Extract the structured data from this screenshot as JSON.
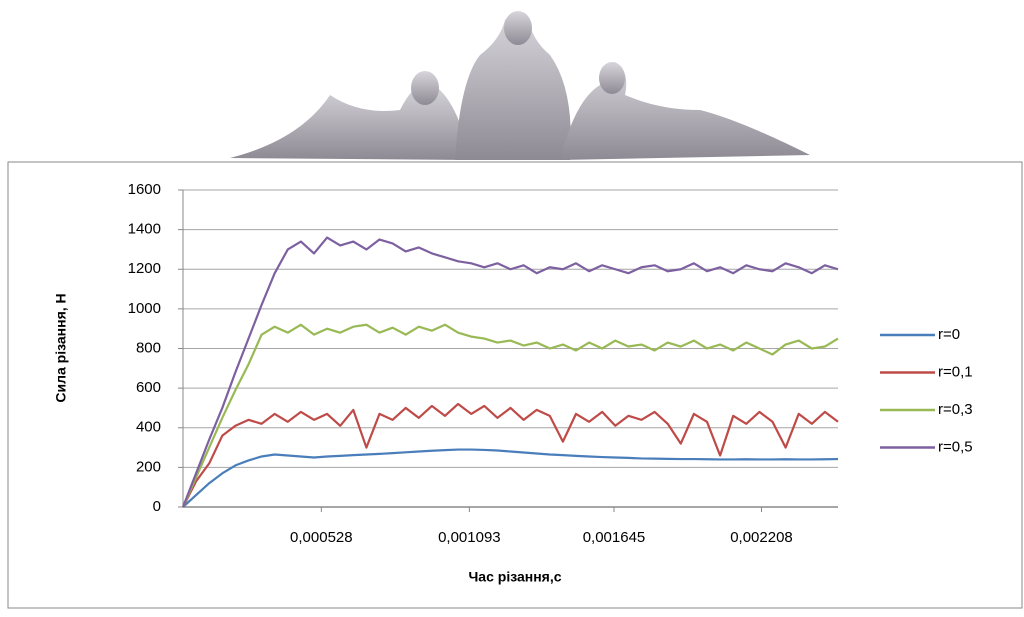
{
  "chart_data": {
    "type": "line",
    "x_label": "Час різання,с",
    "y_label": "Сила різання, Н",
    "x": [
      0,
      5e-05,
      0.0001,
      0.00015,
      0.0002,
      0.00025,
      0.0003,
      0.00035,
      0.0004,
      0.00045,
      0.0005,
      0.00055,
      0.0006,
      0.00065,
      0.0007,
      0.00075,
      0.0008,
      0.00085,
      0.0009,
      0.00095,
      0.001,
      0.00105,
      0.0011,
      0.00115,
      0.0012,
      0.00125,
      0.0013,
      0.00135,
      0.0014,
      0.00145,
      0.0015,
      0.00155,
      0.0016,
      0.00165,
      0.0017,
      0.00175,
      0.0018,
      0.00185,
      0.0019,
      0.00195,
      0.002,
      0.00205,
      0.0021,
      0.00215,
      0.0022,
      0.00225,
      0.0023,
      0.00235,
      0.0024,
      0.00245,
      0.0025
    ],
    "series": [
      {
        "name": "r=0",
        "color": "#4a7ebb",
        "values": [
          0,
          60,
          120,
          170,
          210,
          235,
          255,
          265,
          260,
          255,
          250,
          255,
          258,
          262,
          265,
          268,
          272,
          276,
          280,
          284,
          287,
          290,
          290,
          288,
          285,
          280,
          275,
          270,
          265,
          262,
          258,
          255,
          252,
          250,
          248,
          245,
          244,
          243,
          242,
          242,
          241,
          240,
          240,
          241,
          240,
          240,
          241,
          240,
          240,
          241,
          242
        ]
      },
      {
        "name": "r=0,1",
        "color": "#be4b48",
        "values": [
          0,
          130,
          220,
          360,
          410,
          440,
          420,
          470,
          430,
          480,
          440,
          470,
          410,
          490,
          300,
          470,
          440,
          500,
          450,
          510,
          460,
          520,
          470,
          510,
          450,
          500,
          440,
          490,
          460,
          330,
          470,
          430,
          480,
          410,
          460,
          440,
          480,
          420,
          320,
          470,
          430,
          260,
          460,
          420,
          480,
          430,
          300,
          470,
          420,
          480,
          430
        ]
      },
      {
        "name": "r=0,3",
        "color": "#98b954",
        "values": [
          0,
          150,
          300,
          450,
          590,
          720,
          870,
          910,
          880,
          920,
          870,
          900,
          880,
          910,
          920,
          880,
          905,
          870,
          910,
          890,
          920,
          880,
          860,
          850,
          830,
          840,
          815,
          830,
          800,
          820,
          790,
          830,
          800,
          840,
          810,
          820,
          790,
          830,
          810,
          840,
          800,
          820,
          790,
          830,
          800,
          770,
          820,
          840,
          800,
          810,
          850
        ]
      },
      {
        "name": "r=0,5",
        "color": "#7d60a0",
        "values": [
          0,
          170,
          340,
          500,
          680,
          850,
          1020,
          1180,
          1300,
          1340,
          1280,
          1360,
          1320,
          1340,
          1300,
          1350,
          1330,
          1290,
          1310,
          1280,
          1260,
          1240,
          1230,
          1210,
          1230,
          1200,
          1220,
          1180,
          1210,
          1200,
          1230,
          1190,
          1220,
          1200,
          1180,
          1210,
          1220,
          1190,
          1200,
          1230,
          1190,
          1210,
          1180,
          1220,
          1200,
          1190,
          1230,
          1210,
          1180,
          1220,
          1200
        ]
      }
    ],
    "xlim": [
      0,
      0.0025
    ],
    "xticks": [
      {
        "value": 0.000528,
        "label": "0,000528"
      },
      {
        "value": 0.001093,
        "label": "0,001093"
      },
      {
        "value": 0.001645,
        "label": "0,001645"
      },
      {
        "value": 0.002208,
        "label": "0,002208"
      }
    ],
    "ylim": [
      0,
      1600
    ],
    "yticks": [
      0,
      200,
      400,
      600,
      800,
      1000,
      1200,
      1400,
      1600
    ],
    "grid": true,
    "legend": "right"
  }
}
